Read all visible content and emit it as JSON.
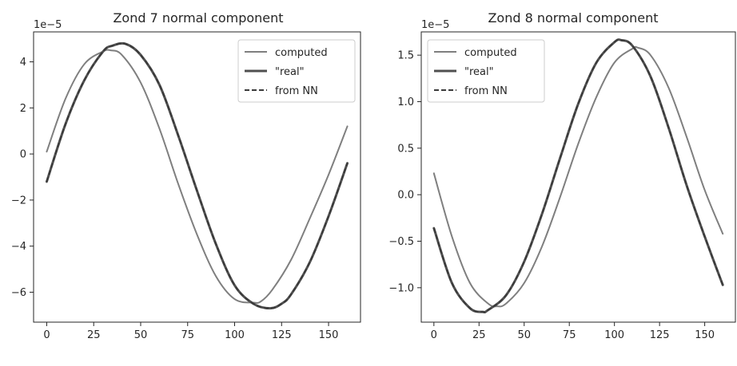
{
  "chart_data": [
    {
      "type": "line",
      "title": "Zond 7 normal component",
      "offset_text": "1e−5",
      "xlabel": "",
      "ylabel": "",
      "xlim": [
        -7,
        167
      ],
      "ylim": [
        -7.3,
        5.3
      ],
      "x_ticks": [
        0,
        25,
        50,
        75,
        100,
        125,
        150
      ],
      "x_tick_labels": [
        "0",
        "25",
        "50",
        "75",
        "100",
        "125",
        "150"
      ],
      "y_ticks": [
        4,
        2,
        0,
        -2,
        -4,
        -6
      ],
      "y_tick_labels": [
        "4",
        "2",
        "0",
        "−2",
        "−4",
        "−6"
      ],
      "grid": false,
      "legend_position": "top-right",
      "series": [
        {
          "name": "computed",
          "color": "#7f7f7f",
          "style": "solid",
          "width": 2,
          "x": [
            0,
            10,
            20,
            30,
            34,
            40,
            50,
            60,
            70,
            80,
            90,
            100,
            110,
            114,
            120,
            130,
            140,
            150,
            160
          ],
          "y": [
            0.1,
            2.4,
            3.9,
            4.45,
            4.5,
            4.3,
            3.1,
            1.1,
            -1.3,
            -3.5,
            -5.3,
            -6.3,
            -6.45,
            -6.4,
            -5.9,
            -4.6,
            -2.8,
            -0.9,
            1.2
          ]
        },
        {
          "name": "\"real\"",
          "color": "#505050",
          "style": "solid",
          "width": 3,
          "x": [
            0,
            10,
            20,
            30,
            35,
            42,
            50,
            60,
            70,
            80,
            90,
            100,
            110,
            119,
            125,
            130,
            140,
            150,
            160
          ],
          "y": [
            -1.2,
            1.3,
            3.2,
            4.45,
            4.7,
            4.78,
            4.3,
            3.0,
            0.8,
            -1.6,
            -3.9,
            -5.7,
            -6.5,
            -6.7,
            -6.5,
            -6.1,
            -4.7,
            -2.7,
            -0.4
          ]
        },
        {
          "name": "from NN",
          "color": "#3a3a3a",
          "style": "dashed",
          "width": 2,
          "x": [
            0,
            10,
            20,
            30,
            35,
            42,
            50,
            60,
            70,
            80,
            90,
            100,
            110,
            119,
            125,
            130,
            140,
            150,
            160
          ],
          "y": [
            -1.2,
            1.3,
            3.2,
            4.45,
            4.7,
            4.78,
            4.3,
            3.0,
            0.8,
            -1.6,
            -3.9,
            -5.7,
            -6.5,
            -6.7,
            -6.5,
            -6.1,
            -4.7,
            -2.7,
            -0.4
          ]
        }
      ]
    },
    {
      "type": "line",
      "title": "Zond 8 normal component",
      "offset_text": "1e−5",
      "xlabel": "",
      "ylabel": "",
      "xlim": [
        -7,
        167
      ],
      "ylim": [
        -1.37,
        1.75
      ],
      "x_ticks": [
        0,
        25,
        50,
        75,
        100,
        125,
        150
      ],
      "x_tick_labels": [
        "0",
        "25",
        "50",
        "75",
        "100",
        "125",
        "150"
      ],
      "y_ticks": [
        1.5,
        1.0,
        0.5,
        0.0,
        -0.5,
        -1.0
      ],
      "y_tick_labels": [
        "1.5",
        "1.0",
        "0.5",
        "0.0",
        "−0.5",
        "−1.0"
      ],
      "grid": false,
      "legend_position": "top-left",
      "series": [
        {
          "name": "computed",
          "color": "#7f7f7f",
          "style": "solid",
          "width": 2,
          "x": [
            0,
            10,
            20,
            30,
            35,
            40,
            50,
            60,
            70,
            80,
            90,
            100,
            110,
            113,
            120,
            130,
            140,
            150,
            160
          ],
          "y": [
            0.23,
            -0.45,
            -0.95,
            -1.17,
            -1.2,
            -1.17,
            -0.95,
            -0.55,
            -0.02,
            0.55,
            1.05,
            1.42,
            1.57,
            1.58,
            1.5,
            1.15,
            0.62,
            0.05,
            -0.42
          ]
        },
        {
          "name": "\"real\"",
          "color": "#505050",
          "style": "solid",
          "width": 3,
          "x": [
            0,
            10,
            20,
            27,
            30,
            40,
            50,
            60,
            70,
            80,
            90,
            100,
            104,
            110,
            120,
            130,
            140,
            150,
            160
          ],
          "y": [
            -0.36,
            -0.95,
            -1.22,
            -1.26,
            -1.24,
            -1.08,
            -0.72,
            -0.2,
            0.4,
            0.98,
            1.42,
            1.64,
            1.66,
            1.6,
            1.27,
            0.72,
            0.1,
            -0.45,
            -0.97
          ]
        },
        {
          "name": "from NN",
          "color": "#3a3a3a",
          "style": "dashed",
          "width": 2,
          "x": [
            0,
            10,
            20,
            27,
            30,
            40,
            50,
            60,
            70,
            80,
            90,
            100,
            104,
            110,
            120,
            130,
            140,
            150,
            160
          ],
          "y": [
            -0.36,
            -0.95,
            -1.22,
            -1.26,
            -1.24,
            -1.08,
            -0.72,
            -0.2,
            0.4,
            0.98,
            1.42,
            1.64,
            1.66,
            1.6,
            1.27,
            0.72,
            0.1,
            -0.45,
            -0.97
          ]
        }
      ]
    }
  ]
}
